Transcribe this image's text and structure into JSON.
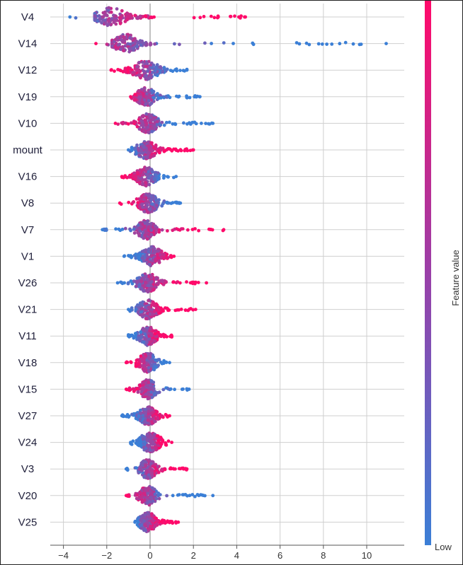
{
  "chart_data": {
    "type": "scatter",
    "subtype": "beeswarm",
    "title": "",
    "xlabel": "",
    "ylabel": "",
    "xlim": [
      -4.6,
      11.6
    ],
    "x_ticks": [
      -4,
      -2,
      0,
      2,
      4,
      6,
      8,
      10
    ],
    "grid": true,
    "colors": {
      "high": "#ff0a6a",
      "low": "#3b7fd6",
      "grid": "#cfcfcf",
      "axis": "#555555"
    },
    "colorbar": {
      "label": "Feature value",
      "high_label": "",
      "low_label": "Low"
    },
    "features": [
      {
        "name": "V4",
        "min": -3.7,
        "max": 4.4,
        "core": [
          -2.2,
          -0.1
        ],
        "peak": -1.8,
        "spread": 0.55,
        "low_side": "left"
      },
      {
        "name": "V14",
        "min": -2.5,
        "max": 10.9,
        "core": [
          -1.4,
          0.2
        ],
        "peak": -1.1,
        "spread": 0.45,
        "low_side": "right"
      },
      {
        "name": "V12",
        "min": -1.8,
        "max": 1.7,
        "core": [
          -1.1,
          0.3
        ],
        "peak": -0.2,
        "spread": 0.5,
        "low_side": "right"
      },
      {
        "name": "V19",
        "min": -0.9,
        "max": 2.3,
        "core": [
          -0.5,
          0.2
        ],
        "peak": -0.2,
        "spread": 0.35,
        "low_side": "right"
      },
      {
        "name": "V10",
        "min": -1.6,
        "max": 2.9,
        "core": [
          -0.6,
          0.2
        ],
        "peak": -0.1,
        "spread": 0.4,
        "low_side": "right"
      },
      {
        "name": "mount",
        "min": -1.0,
        "max": 2.0,
        "core": [
          -0.5,
          0.3
        ],
        "peak": -0.2,
        "spread": 0.4,
        "low_side": "left"
      },
      {
        "name": "V16",
        "min": -1.3,
        "max": 1.2,
        "core": [
          -0.5,
          0.3
        ],
        "peak": -0.2,
        "spread": 0.4,
        "low_side": "right"
      },
      {
        "name": "V8",
        "min": -1.4,
        "max": 1.4,
        "core": [
          -0.3,
          0.3
        ],
        "peak": -0.1,
        "spread": 0.4,
        "low_side": "right"
      },
      {
        "name": "V7",
        "min": -2.2,
        "max": 3.4,
        "core": [
          -0.4,
          0.3
        ],
        "peak": -0.2,
        "spread": 0.35,
        "low_side": "left"
      },
      {
        "name": "V1",
        "min": -1.2,
        "max": 1.1,
        "core": [
          -0.3,
          0.6
        ],
        "peak": 0.1,
        "spread": 0.4,
        "low_side": "left"
      },
      {
        "name": "V26",
        "min": -1.5,
        "max": 2.6,
        "core": [
          -0.4,
          0.4
        ],
        "peak": -0.1,
        "spread": 0.4,
        "low_side": "left"
      },
      {
        "name": "V21",
        "min": -1.0,
        "max": 2.1,
        "core": [
          -0.3,
          0.6
        ],
        "peak": -0.1,
        "spread": 0.4,
        "low_side": "left"
      },
      {
        "name": "V11",
        "min": -1.0,
        "max": 1.0,
        "core": [
          -0.3,
          0.4
        ],
        "peak": -0.1,
        "spread": 0.35,
        "low_side": "left"
      },
      {
        "name": "V18",
        "min": -1.1,
        "max": 0.9,
        "core": [
          -0.3,
          0.4
        ],
        "peak": -0.1,
        "spread": 0.4,
        "low_side": "right"
      },
      {
        "name": "V15",
        "min": -1.1,
        "max": 1.8,
        "core": [
          -0.3,
          0.3
        ],
        "peak": -0.1,
        "spread": 0.35,
        "low_side": "right"
      },
      {
        "name": "V27",
        "min": -1.3,
        "max": 0.9,
        "core": [
          -0.3,
          0.4
        ],
        "peak": -0.1,
        "spread": 0.35,
        "low_side": "left"
      },
      {
        "name": "V24",
        "min": -0.9,
        "max": 1.0,
        "core": [
          -0.3,
          0.4
        ],
        "peak": 0.0,
        "spread": 0.45,
        "low_side": "left"
      },
      {
        "name": "V3",
        "min": -1.1,
        "max": 1.7,
        "core": [
          -0.3,
          0.3
        ],
        "peak": -0.1,
        "spread": 0.35,
        "low_side": "left"
      },
      {
        "name": "V20",
        "min": -1.1,
        "max": 2.9,
        "core": [
          -0.3,
          0.3
        ],
        "peak": -0.1,
        "spread": 0.35,
        "low_side": "right"
      },
      {
        "name": "V25",
        "min": -0.7,
        "max": 1.3,
        "core": [
          -0.3,
          0.4
        ],
        "peak": -0.1,
        "spread": 0.35,
        "low_side": "left"
      }
    ]
  }
}
